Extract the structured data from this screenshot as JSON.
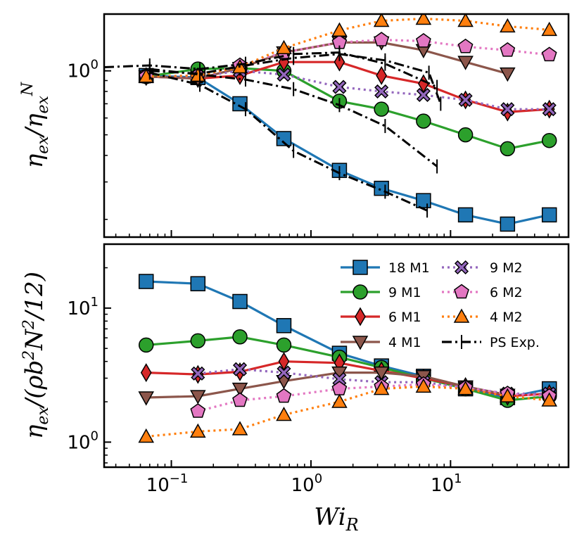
{
  "chart_data": {
    "type": "line",
    "x_scale": "log",
    "y_scale": "log",
    "shared_xlabel": "Wi_R",
    "xlim": [
      0.033,
      70
    ],
    "x_ticks": [
      {
        "value": 0.1,
        "base": "10",
        "exp": "−1"
      },
      {
        "value": 1,
        "base": "10",
        "exp": "0"
      },
      {
        "value": 10,
        "base": "10",
        "exp": "1"
      }
    ],
    "legend": {
      "location": "upper-right",
      "columns": 2
    },
    "panels": [
      {
        "id": "top",
        "ylabel": "ηex/ηexN",
        "ylim": [
          0.165,
          1.85
        ],
        "y_ticks": [
          {
            "value": 1,
            "base": "10",
            "exp": "0"
          }
        ],
        "series": [
          {
            "name": "18 M1",
            "color": "#1f77b4",
            "marker": "square",
            "dash": "solid",
            "x": [
              0.066,
              0.155,
              0.31,
              0.64,
              1.6,
              3.2,
              6.4,
              12.8,
              25.6,
              51
            ],
            "y": [
              0.95,
              0.93,
              0.7,
              0.48,
              0.34,
              0.28,
              0.245,
              0.21,
              0.19,
              0.21
            ]
          },
          {
            "name": "9  M1",
            "color": "#2ca02c",
            "marker": "circle",
            "dash": "solid",
            "x": [
              0.066,
              0.155,
              0.31,
              0.64,
              1.6,
              3.2,
              6.4,
              12.8,
              25.6,
              51
            ],
            "y": [
              0.94,
              1.02,
              1.03,
              1.0,
              0.72,
              0.66,
              0.58,
              0.5,
              0.43,
              0.47
            ]
          },
          {
            "name": "6 M1",
            "color": "#d62728",
            "marker": "thin_diamond",
            "dash": "solid",
            "x": [
              0.066,
              0.155,
              0.31,
              0.64,
              1.6,
              3.2,
              6.4,
              12.8,
              25.6,
              51
            ],
            "y": [
              0.94,
              0.92,
              0.95,
              1.1,
              1.1,
              0.95,
              0.87,
              0.73,
              0.64,
              0.66
            ]
          },
          {
            "name": "4 M1",
            "color": "#8c564b",
            "marker": "triangle-down",
            "dash": "solid",
            "x": [
              0.066,
              0.155,
              0.31,
              0.64,
              1.6,
              3.2,
              6.4,
              12.8,
              25.6
            ],
            "y": [
              0.94,
              0.92,
              1.03,
              1.22,
              1.36,
              1.36,
              1.25,
              1.1,
              0.97
            ]
          },
          {
            "name": "9 M2",
            "color": "#9467bd",
            "marker": "x",
            "dash": "dotted",
            "x": [
              0.066,
              0.155,
              0.31,
              0.64,
              1.6,
              3.2,
              6.4,
              12.8,
              25.6,
              51
            ],
            "y": [
              0.94,
              0.94,
              1.0,
              0.96,
              0.84,
              0.8,
              0.77,
              0.73,
              0.66,
              0.66
            ]
          },
          {
            "name": "6 M2",
            "color": "#e377c2",
            "marker": "pentagon",
            "dash": "dotted",
            "x": [
              0.066,
              0.155,
              0.31,
              0.64,
              1.6,
              3.2,
              6.4,
              12.8,
              25.6,
              51
            ],
            "y": [
              0.94,
              0.95,
              1.06,
              1.22,
              1.36,
              1.4,
              1.38,
              1.3,
              1.25,
              1.19
            ]
          },
          {
            "name": "4 M2",
            "color": "#ff7f0e",
            "marker": "triangle-up",
            "dash": "dotted",
            "x": [
              0.066,
              0.155,
              0.31,
              0.64,
              1.6,
              3.2,
              6.4,
              12.8,
              25.6,
              51
            ],
            "y": [
              0.94,
              0.95,
              1.04,
              1.28,
              1.55,
              1.72,
              1.76,
              1.72,
              1.62,
              1.56
            ]
          },
          {
            "name": "PS Exp.",
            "color": "#000000",
            "marker": "vline",
            "dash": "dashdot",
            "x": [
              0.033,
              0.07,
              0.16,
              0.34,
              0.75,
              1.6,
              3.4,
              8.0
            ],
            "y": [
              1.04,
              1.06,
              1.02,
              1.08,
              1.2,
              1.22,
              1.08,
              0.84
            ]
          },
          {
            "name": "PS Exp.",
            "color": "#000000",
            "marker": "vline",
            "dash": "dashdot",
            "x": [
              0.07,
              0.16,
              0.34,
              0.75,
              1.6,
              3.4,
              8.0
            ],
            "y": [
              1.02,
              0.96,
              0.91,
              0.82,
              0.69,
              0.55,
              0.355
            ]
          },
          {
            "name": "PS Exp.",
            "color": "#000000",
            "marker": "vline",
            "dash": "dashdot",
            "x": [
              0.07,
              0.16,
              0.34,
              0.75,
              1.6,
              3.4,
              6.8
            ],
            "y": [
              0.98,
              0.86,
              0.66,
              0.42,
              0.33,
              0.27,
              0.22
            ]
          },
          {
            "name": "PS Exp.",
            "color": "#000000",
            "marker": "vline",
            "dash": "dashdot",
            "x": [
              0.07,
              0.16,
              0.34,
              0.75,
              1.6,
              3.4,
              7.0,
              8.5
            ],
            "y": [
              1.0,
              0.97,
              1.06,
              1.15,
              1.2,
              1.12,
              0.98,
              0.7
            ]
          }
        ]
      },
      {
        "id": "bottom",
        "ylabel": "ηex/(ρb2N2/12)",
        "ylim": [
          0.65,
          30
        ],
        "y_ticks": [
          {
            "value": 1,
            "base": "10",
            "exp": "0"
          },
          {
            "value": 10,
            "base": "10",
            "exp": "1"
          }
        ],
        "series": [
          {
            "name": "18 M1",
            "color": "#1f77b4",
            "marker": "square",
            "dash": "solid",
            "x": [
              0.066,
              0.155,
              0.31,
              0.64,
              1.6,
              3.2,
              6.4,
              12.8,
              25.6,
              51
            ],
            "y": [
              15.8,
              15.2,
              11.2,
              7.4,
              4.6,
              3.7,
              3.1,
              2.5,
              2.15,
              2.5
            ]
          },
          {
            "name": "9  M1",
            "color": "#2ca02c",
            "marker": "circle",
            "dash": "solid",
            "x": [
              0.066,
              0.155,
              0.31,
              0.64,
              1.6,
              3.2,
              6.4,
              12.8,
              25.6,
              51
            ],
            "y": [
              5.3,
              5.7,
              6.1,
              5.3,
              4.3,
              3.6,
              3.0,
              2.5,
              2.05,
              2.2
            ]
          },
          {
            "name": "6 M1",
            "color": "#d62728",
            "marker": "thin_diamond",
            "dash": "solid",
            "x": [
              0.066,
              0.155,
              0.31,
              0.64,
              1.6,
              3.2,
              6.4,
              12.8,
              25.6,
              51
            ],
            "y": [
              3.3,
              3.2,
              3.35,
              4.0,
              3.9,
              3.4,
              3.0,
              2.6,
              2.2,
              2.3
            ]
          },
          {
            "name": "4 M1",
            "color": "#8c564b",
            "marker": "triangle-down",
            "dash": "solid",
            "x": [
              0.066,
              0.155,
              0.31,
              0.64,
              1.6,
              3.2,
              6.4,
              12.8,
              25.6
            ],
            "y": [
              2.15,
              2.2,
              2.5,
              2.85,
              3.3,
              3.3,
              3.1,
              2.6,
              2.25
            ]
          },
          {
            "name": "9 M2",
            "color": "#9467bd",
            "marker": "x",
            "dash": "dotted",
            "x": [
              0.155,
              0.31,
              0.64,
              1.6,
              3.2,
              6.4,
              12.8,
              25.6,
              51
            ],
            "y": [
              3.25,
              3.5,
              3.3,
              2.95,
              2.8,
              2.8,
              2.55,
              2.3,
              2.3
            ]
          },
          {
            "name": "6 M2",
            "color": "#e377c2",
            "marker": "pentagon",
            "dash": "dotted",
            "x": [
              0.155,
              0.31,
              0.64,
              1.6,
              3.2,
              6.4,
              12.8,
              25.6,
              51
            ],
            "y": [
              1.7,
              2.05,
              2.2,
              2.5,
              2.6,
              2.7,
              2.55,
              2.3,
              2.2
            ]
          },
          {
            "name": "4 M2",
            "color": "#ff7f0e",
            "marker": "triangle-up",
            "dash": "dotted",
            "x": [
              0.066,
              0.155,
              0.31,
              0.64,
              1.6,
              3.2,
              6.4,
              12.8,
              25.6,
              51
            ],
            "y": [
              1.1,
              1.2,
              1.25,
              1.6,
              2.0,
              2.5,
              2.6,
              2.5,
              2.2,
              2.05
            ]
          }
        ]
      }
    ]
  }
}
